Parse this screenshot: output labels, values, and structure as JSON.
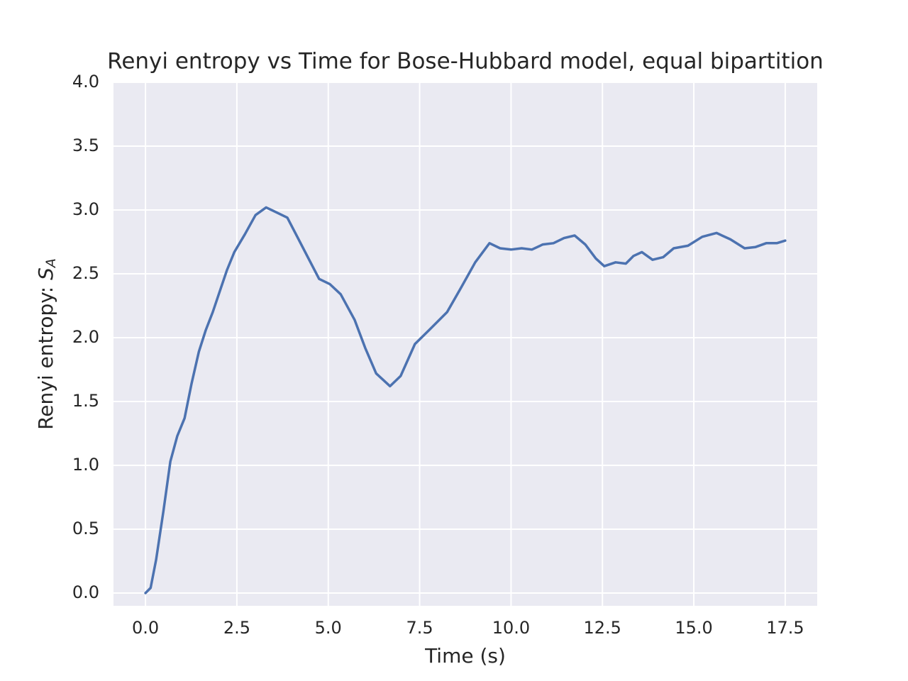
{
  "chart_data": {
    "type": "line",
    "title": "Renyi entropy vs Time for Bose-Hubbard model, equal bipartition",
    "xlabel": "Time (s)",
    "ylabel": {
      "text": "Renyi entropy: ",
      "symbol": "S",
      "subscript": "A"
    },
    "xlim": [
      -0.875,
      18.375
    ],
    "ylim": [
      -0.1,
      4.0
    ],
    "xticks": [
      {
        "value": 0,
        "label": "0.0"
      },
      2.5,
      {
        "value": 5,
        "label": "5.0"
      },
      7.5,
      {
        "value": 10,
        "label": "10.0"
      },
      12.5,
      {
        "value": 15,
        "label": "15.0"
      },
      17.5
    ],
    "yticks": [
      {
        "value": 0,
        "label": "0.0"
      },
      0.5,
      {
        "value": 1,
        "label": "1.0"
      },
      1.5,
      {
        "value": 2,
        "label": "2.0"
      },
      2.5,
      {
        "value": 3,
        "label": "3.0"
      },
      3.5,
      {
        "value": 4,
        "label": "4.0"
      }
    ],
    "grid": true,
    "x": [
      0,
      0.14,
      0.29,
      0.49,
      0.68,
      0.87,
      1.07,
      1.26,
      1.46,
      1.65,
      1.84,
      2.04,
      2.23,
      2.43,
      2.72,
      3.01,
      3.3,
      3.59,
      3.88,
      4.17,
      4.46,
      4.75,
      5.04,
      5.34,
      5.72,
      6.01,
      6.31,
      6.69,
      6.98,
      7.37,
      7.76,
      8.25,
      8.63,
      9.02,
      9.41,
      9.7,
      10.0,
      10.29,
      10.57,
      10.87,
      11.16,
      11.45,
      11.74,
      12.03,
      12.32,
      12.55,
      12.86,
      13.14,
      13.35,
      13.58,
      13.87,
      14.16,
      14.45,
      14.84,
      15.23,
      15.62,
      16.0,
      16.39,
      16.69,
      16.98,
      17.27,
      17.5
    ],
    "series": [
      {
        "color": "#4c72b0",
        "values": [
          0,
          0.04,
          0.26,
          0.64,
          1.03,
          1.23,
          1.37,
          1.64,
          1.89,
          2.06,
          2.2,
          2.37,
          2.53,
          2.67,
          2.81,
          2.96,
          3.02,
          2.98,
          2.94,
          2.78,
          2.62,
          2.46,
          2.42,
          2.34,
          2.14,
          1.92,
          1.72,
          1.62,
          1.7,
          1.95,
          2.06,
          2.2,
          2.39,
          2.59,
          2.74,
          2.7,
          2.69,
          2.7,
          2.69,
          2.73,
          2.74,
          2.78,
          2.8,
          2.73,
          2.62,
          2.56,
          2.59,
          2.58,
          2.64,
          2.67,
          2.61,
          2.63,
          2.7,
          2.72,
          2.79,
          2.82,
          2.77,
          2.7,
          2.71,
          2.74,
          2.74,
          2.76
        ]
      }
    ]
  }
}
